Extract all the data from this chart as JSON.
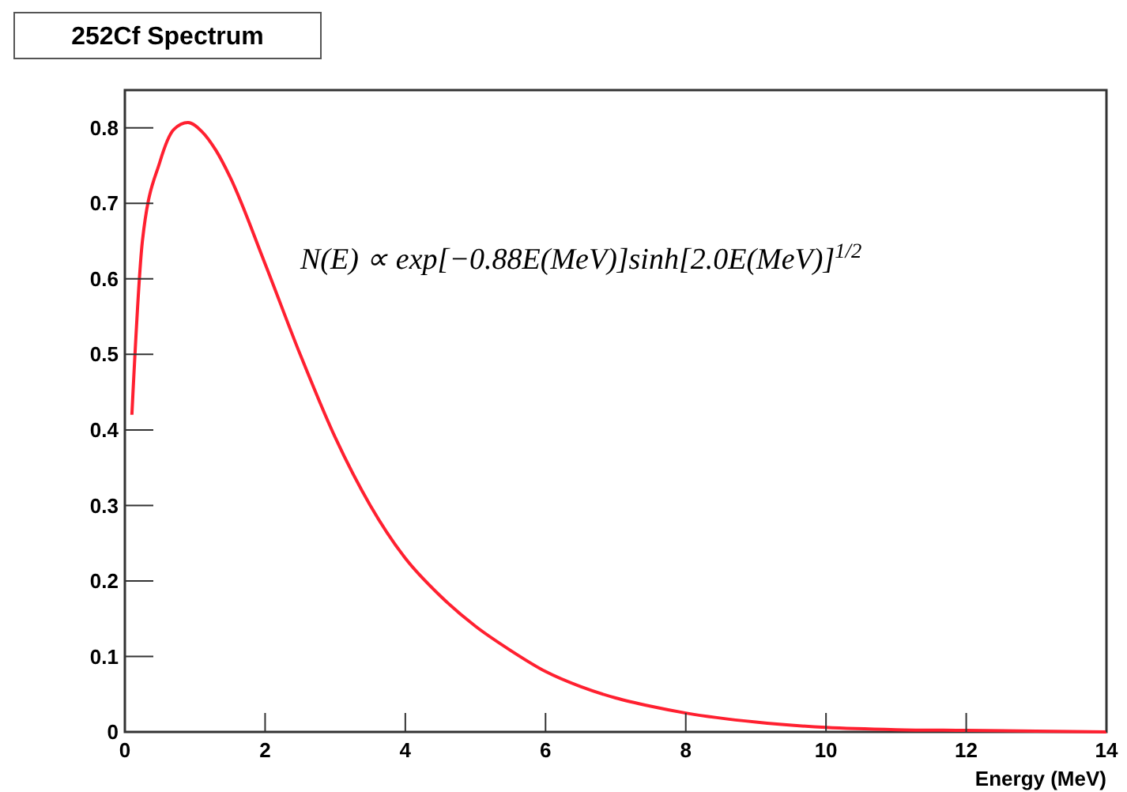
{
  "chart_data": {
    "type": "line",
    "title": "252Cf Spectrum",
    "xlabel": "Energy (MeV)",
    "annotations": [
      "N(E) ∝ exp[−0.88E(MeV)]sinh[2.0E(MeV)]$^{1/2}$"
    ],
    "x": [
      0.1,
      0.25,
      0.5,
      0.7,
      0.9,
      1.1,
      1.3,
      1.5,
      2,
      2.5,
      3,
      3.5,
      4,
      4.5,
      5,
      5.5,
      6,
      6.5,
      7,
      7.5,
      8,
      9,
      10,
      11,
      12,
      13,
      14
    ],
    "series": [
      {
        "color": "#ff2030",
        "values": [
          0.42,
          0.65,
          0.755,
          0.798,
          0.807,
          0.795,
          0.77,
          0.735,
          0.62,
          0.5,
          0.39,
          0.3,
          0.23,
          0.18,
          0.14,
          0.108,
          0.08,
          0.06,
          0.045,
          0.034,
          0.025,
          0.013,
          0.006,
          0.003,
          0.002,
          0.001,
          0
        ]
      }
    ],
    "xlim": [
      0,
      14
    ],
    "ylim": [
      0,
      0.85
    ],
    "xticks": [
      0,
      2,
      4,
      6,
      8,
      10,
      12,
      14
    ],
    "yticks": [
      0,
      0.1,
      0.2,
      0.3,
      0.4,
      0.5,
      0.6,
      0.7,
      0.8
    ],
    "grid": false,
    "marker": "none",
    "line_style": "solid"
  }
}
